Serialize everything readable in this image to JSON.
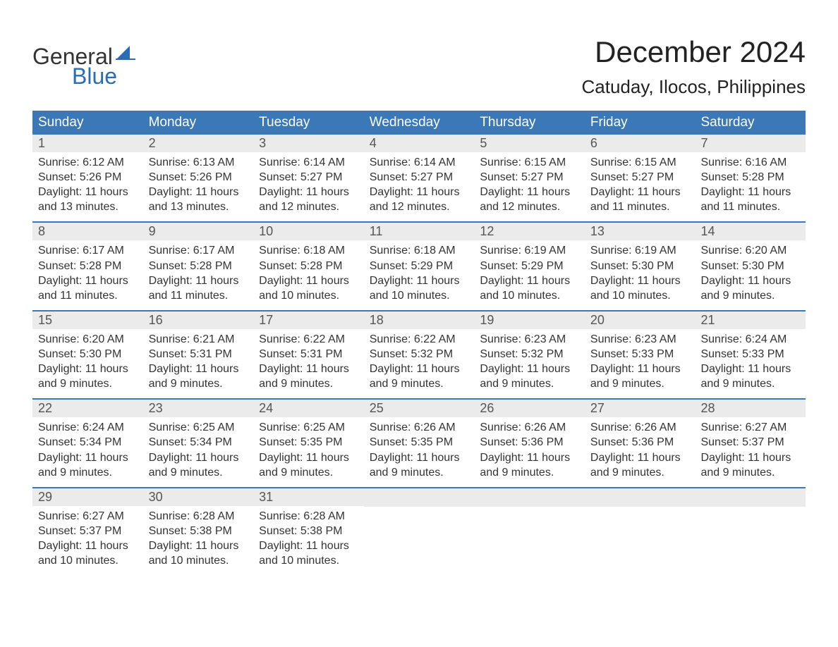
{
  "logo": {
    "text1": "General",
    "text2": "Blue",
    "sail_color": "#2a6db3"
  },
  "title": "December 2024",
  "location": "Catuday, Ilocos, Philippines",
  "colors": {
    "header_bg": "#3a78b8",
    "header_text": "#ffffff",
    "daynum_bg": "#ebebeb",
    "week_border": "#3a78b8",
    "body_text": "#333333",
    "page_bg": "#ffffff"
  },
  "typography": {
    "title_fontsize": 42,
    "location_fontsize": 26,
    "weekday_fontsize": 19,
    "body_fontsize": 16
  },
  "layout": {
    "columns": 7,
    "rows": 5,
    "first_weekday": "Sunday"
  },
  "weekdays": [
    "Sunday",
    "Monday",
    "Tuesday",
    "Wednesday",
    "Thursday",
    "Friday",
    "Saturday"
  ],
  "labels": {
    "sunrise": "Sunrise:",
    "sunset": "Sunset:",
    "daylight": "Daylight:"
  },
  "days": [
    {
      "n": 1,
      "sunrise": "6:12 AM",
      "sunset": "5:26 PM",
      "daylight": "11 hours and 13 minutes."
    },
    {
      "n": 2,
      "sunrise": "6:13 AM",
      "sunset": "5:26 PM",
      "daylight": "11 hours and 13 minutes."
    },
    {
      "n": 3,
      "sunrise": "6:14 AM",
      "sunset": "5:27 PM",
      "daylight": "11 hours and 12 minutes."
    },
    {
      "n": 4,
      "sunrise": "6:14 AM",
      "sunset": "5:27 PM",
      "daylight": "11 hours and 12 minutes."
    },
    {
      "n": 5,
      "sunrise": "6:15 AM",
      "sunset": "5:27 PM",
      "daylight": "11 hours and 12 minutes."
    },
    {
      "n": 6,
      "sunrise": "6:15 AM",
      "sunset": "5:27 PM",
      "daylight": "11 hours and 11 minutes."
    },
    {
      "n": 7,
      "sunrise": "6:16 AM",
      "sunset": "5:28 PM",
      "daylight": "11 hours and 11 minutes."
    },
    {
      "n": 8,
      "sunrise": "6:17 AM",
      "sunset": "5:28 PM",
      "daylight": "11 hours and 11 minutes."
    },
    {
      "n": 9,
      "sunrise": "6:17 AM",
      "sunset": "5:28 PM",
      "daylight": "11 hours and 11 minutes."
    },
    {
      "n": 10,
      "sunrise": "6:18 AM",
      "sunset": "5:28 PM",
      "daylight": "11 hours and 10 minutes."
    },
    {
      "n": 11,
      "sunrise": "6:18 AM",
      "sunset": "5:29 PM",
      "daylight": "11 hours and 10 minutes."
    },
    {
      "n": 12,
      "sunrise": "6:19 AM",
      "sunset": "5:29 PM",
      "daylight": "11 hours and 10 minutes."
    },
    {
      "n": 13,
      "sunrise": "6:19 AM",
      "sunset": "5:30 PM",
      "daylight": "11 hours and 10 minutes."
    },
    {
      "n": 14,
      "sunrise": "6:20 AM",
      "sunset": "5:30 PM",
      "daylight": "11 hours and 9 minutes."
    },
    {
      "n": 15,
      "sunrise": "6:20 AM",
      "sunset": "5:30 PM",
      "daylight": "11 hours and 9 minutes."
    },
    {
      "n": 16,
      "sunrise": "6:21 AM",
      "sunset": "5:31 PM",
      "daylight": "11 hours and 9 minutes."
    },
    {
      "n": 17,
      "sunrise": "6:22 AM",
      "sunset": "5:31 PM",
      "daylight": "11 hours and 9 minutes."
    },
    {
      "n": 18,
      "sunrise": "6:22 AM",
      "sunset": "5:32 PM",
      "daylight": "11 hours and 9 minutes."
    },
    {
      "n": 19,
      "sunrise": "6:23 AM",
      "sunset": "5:32 PM",
      "daylight": "11 hours and 9 minutes."
    },
    {
      "n": 20,
      "sunrise": "6:23 AM",
      "sunset": "5:33 PM",
      "daylight": "11 hours and 9 minutes."
    },
    {
      "n": 21,
      "sunrise": "6:24 AM",
      "sunset": "5:33 PM",
      "daylight": "11 hours and 9 minutes."
    },
    {
      "n": 22,
      "sunrise": "6:24 AM",
      "sunset": "5:34 PM",
      "daylight": "11 hours and 9 minutes."
    },
    {
      "n": 23,
      "sunrise": "6:25 AM",
      "sunset": "5:34 PM",
      "daylight": "11 hours and 9 minutes."
    },
    {
      "n": 24,
      "sunrise": "6:25 AM",
      "sunset": "5:35 PM",
      "daylight": "11 hours and 9 minutes."
    },
    {
      "n": 25,
      "sunrise": "6:26 AM",
      "sunset": "5:35 PM",
      "daylight": "11 hours and 9 minutes."
    },
    {
      "n": 26,
      "sunrise": "6:26 AM",
      "sunset": "5:36 PM",
      "daylight": "11 hours and 9 minutes."
    },
    {
      "n": 27,
      "sunrise": "6:26 AM",
      "sunset": "5:36 PM",
      "daylight": "11 hours and 9 minutes."
    },
    {
      "n": 28,
      "sunrise": "6:27 AM",
      "sunset": "5:37 PM",
      "daylight": "11 hours and 9 minutes."
    },
    {
      "n": 29,
      "sunrise": "6:27 AM",
      "sunset": "5:37 PM",
      "daylight": "11 hours and 10 minutes."
    },
    {
      "n": 30,
      "sunrise": "6:28 AM",
      "sunset": "5:38 PM",
      "daylight": "11 hours and 10 minutes."
    },
    {
      "n": 31,
      "sunrise": "6:28 AM",
      "sunset": "5:38 PM",
      "daylight": "11 hours and 10 minutes."
    }
  ]
}
